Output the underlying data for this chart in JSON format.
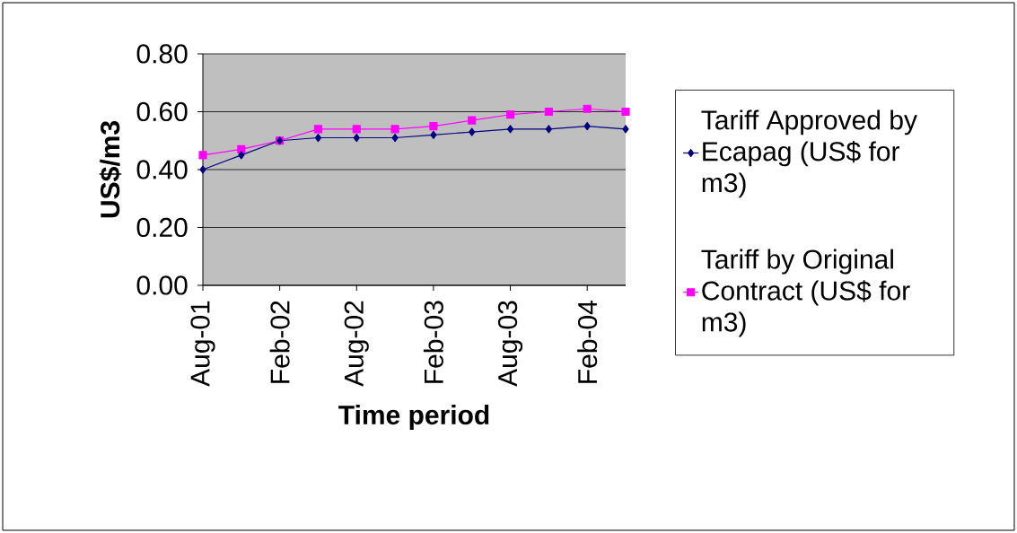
{
  "chart_data": {
    "type": "line",
    "xlabel": "Time period",
    "ylabel": "US$/m3",
    "categories": [
      "Aug-01",
      null,
      "Feb-02",
      null,
      "Aug-02",
      null,
      "Feb-03",
      null,
      "Aug-03",
      null,
      "Feb-04",
      null
    ],
    "series": [
      {
        "name": "Tariff Approved by Ecapag (US$ for m3)",
        "color": "#000080",
        "marker": "diamond",
        "values": [
          0.4,
          0.45,
          0.5,
          0.51,
          0.51,
          0.51,
          0.52,
          0.53,
          0.54,
          0.54,
          0.55,
          0.54
        ]
      },
      {
        "name": "Tariff by Original Contract (US$ for m3)",
        "color": "#ff00ff",
        "marker": "square",
        "values": [
          0.45,
          0.47,
          0.5,
          0.54,
          0.54,
          0.54,
          0.55,
          0.57,
          0.59,
          0.6,
          0.61,
          0.6
        ]
      }
    ],
    "ylim": [
      0,
      0.8
    ],
    "yticks": [
      {
        "value": 0,
        "label": "0.00"
      },
      {
        "value": 0.2,
        "label": "0.20"
      },
      {
        "value": 0.4,
        "label": "0.40"
      },
      {
        "value": 0.6,
        "label": "0.60"
      },
      {
        "value": 0.8,
        "label": "0.80"
      }
    ],
    "grid": "y",
    "legend": "right",
    "line_style": "solid"
  }
}
